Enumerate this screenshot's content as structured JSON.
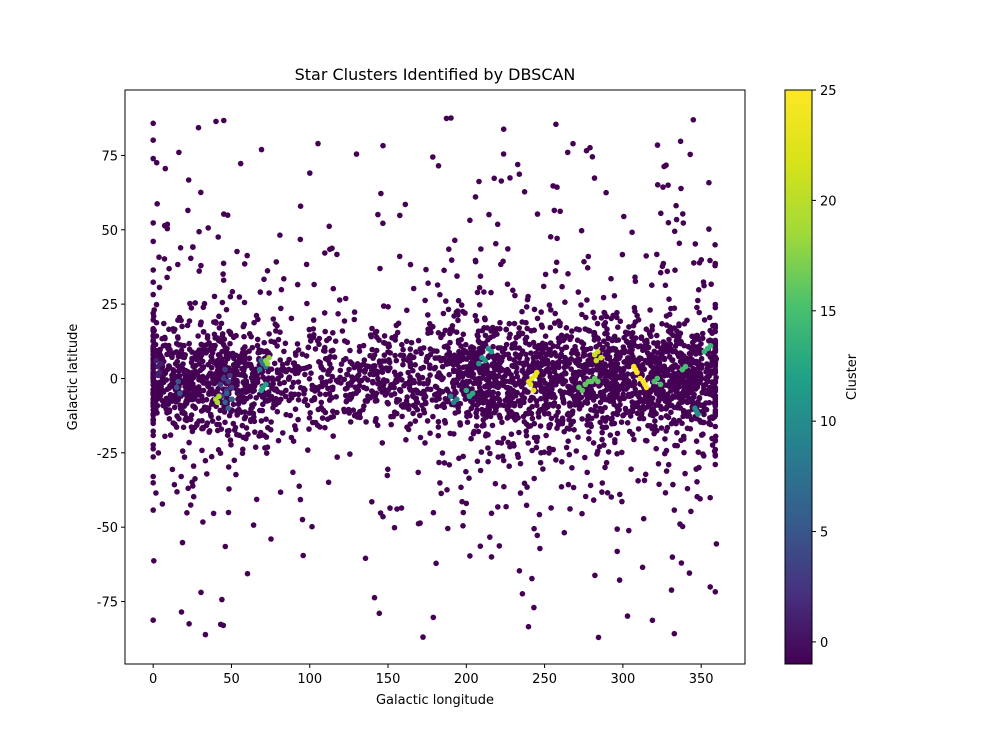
{
  "chart_data": {
    "type": "scatter",
    "title": "Star Clusters Identified by DBSCAN",
    "xlabel": "Galactic longitude",
    "ylabel": "Galactic latitude",
    "xlim": [
      -18,
      378
    ],
    "ylim": [
      -96,
      97
    ],
    "xticks": [
      0,
      50,
      100,
      150,
      200,
      250,
      300,
      350
    ],
    "yticks": [
      -75,
      -50,
      -25,
      0,
      25,
      50,
      75
    ],
    "grid": false,
    "colormap": "viridis",
    "colorbar": {
      "label": "Cluster",
      "range": [
        -1,
        25
      ],
      "ticks": [
        0,
        5,
        10,
        15,
        20,
        25
      ]
    },
    "noise_label": -1,
    "noise_color": "#440154",
    "clusters": [
      {
        "label": 1,
        "points": [
          [
            2,
            6
          ],
          [
            3,
            4
          ],
          [
            4,
            2
          ],
          [
            5,
            5
          ],
          [
            3,
            1
          ]
        ]
      },
      {
        "label": 3,
        "points": [
          [
            43,
            -2
          ],
          [
            45,
            0
          ],
          [
            47,
            -4
          ],
          [
            49,
            1
          ],
          [
            44,
            -6
          ],
          [
            46,
            3
          ],
          [
            48,
            -1
          ],
          [
            50,
            -3
          ]
        ]
      },
      {
        "label": 5,
        "points": [
          [
            15,
            -3
          ],
          [
            17,
            -5
          ],
          [
            16,
            -1
          ]
        ]
      },
      {
        "label": 6,
        "points": [
          [
            46,
            -8
          ],
          [
            48,
            -10
          ],
          [
            50,
            -7
          ],
          [
            47,
            -5
          ]
        ]
      },
      {
        "label": 8,
        "points": [
          [
            68,
            3
          ],
          [
            70,
            5
          ],
          [
            72,
            4
          ],
          [
            69,
            6
          ]
        ]
      },
      {
        "label": 9,
        "points": [
          [
            190,
            -6
          ],
          [
            192,
            -8
          ],
          [
            194,
            -7
          ]
        ]
      },
      {
        "label": 10,
        "points": [
          [
            346,
            -10
          ],
          [
            348,
            -12
          ],
          [
            347,
            -11
          ]
        ]
      },
      {
        "label": 11,
        "points": [
          [
            208,
            5
          ],
          [
            210,
            7
          ],
          [
            212,
            6
          ],
          [
            214,
            10
          ],
          [
            216,
            9
          ]
        ]
      },
      {
        "label": 12,
        "points": [
          [
            70,
            -3
          ],
          [
            72,
            -2
          ],
          [
            69,
            -4
          ]
        ]
      },
      {
        "label": 13,
        "points": [
          [
            200,
            -4
          ],
          [
            202,
            -6
          ],
          [
            204,
            -5
          ]
        ]
      },
      {
        "label": 14,
        "points": [
          [
            352,
            9
          ],
          [
            354,
            10
          ],
          [
            356,
            11
          ]
        ]
      },
      {
        "label": 15,
        "points": [
          [
            320,
            -1
          ],
          [
            322,
            0
          ],
          [
            324,
            -2
          ],
          [
            338,
            3
          ],
          [
            340,
            4
          ]
        ]
      },
      {
        "label": 16,
        "points": [
          [
            272,
            -3
          ],
          [
            274,
            -4
          ],
          [
            276,
            -2
          ],
          [
            278,
            -1
          ],
          [
            280,
            -1
          ],
          [
            282,
            0
          ],
          [
            284,
            -1
          ]
        ]
      },
      {
        "label": 18,
        "points": [
          [
            72,
            6
          ],
          [
            74,
            7
          ],
          [
            73,
            5
          ]
        ]
      },
      {
        "label": 19,
        "points": [
          [
            40,
            -7
          ],
          [
            42,
            -6
          ],
          [
            41,
            -8
          ]
        ]
      },
      {
        "label": 21,
        "points": [
          [
            282,
            8
          ],
          [
            284,
            9
          ],
          [
            286,
            7
          ],
          [
            283,
            6
          ]
        ]
      },
      {
        "label": 23,
        "points": [
          [
            240,
            -1
          ],
          [
            242,
            0
          ],
          [
            244,
            1
          ],
          [
            241,
            -2
          ],
          [
            243,
            -4
          ],
          [
            245,
            2
          ]
        ]
      },
      {
        "label": 25,
        "points": [
          [
            307,
            4
          ],
          [
            309,
            2
          ],
          [
            311,
            0
          ],
          [
            313,
            -1
          ],
          [
            314,
            -2
          ],
          [
            315,
            -3
          ],
          [
            308,
            3
          ]
        ]
      }
    ]
  }
}
